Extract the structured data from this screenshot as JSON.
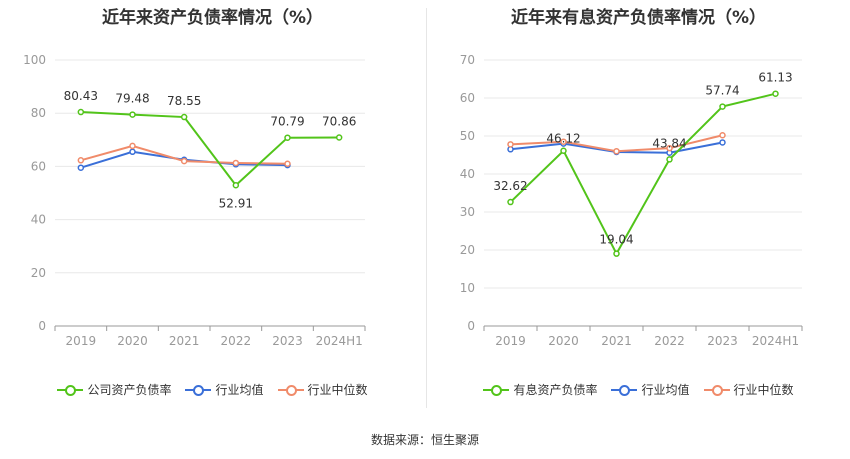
{
  "chart_data": [
    {
      "type": "line",
      "title": "近年来资产负债率情况（%）",
      "categories": [
        "2019",
        "2020",
        "2021",
        "2022",
        "2023",
        "2024H1"
      ],
      "ylim": [
        0,
        100
      ],
      "yticks": [
        "0",
        "20",
        "40",
        "60",
        "80",
        "100"
      ],
      "grid": true,
      "legend_position": "bottom",
      "series": [
        {
          "name": "公司资产负债率",
          "color": "#52c41a",
          "values": [
            80.43,
            79.48,
            78.55,
            52.91,
            70.79,
            70.86
          ],
          "labels": [
            "80.43",
            "79.48",
            "78.55",
            "52.91",
            "70.79",
            "70.86"
          ]
        },
        {
          "name": "行业均值",
          "color": "#3a6fd8",
          "values": [
            59.5,
            65.5,
            62.5,
            60.8,
            60.5,
            null
          ]
        },
        {
          "name": "行业中位数",
          "color": "#f08b6a",
          "values": [
            62.3,
            67.7,
            62.0,
            61.3,
            61.0,
            null
          ]
        }
      ]
    },
    {
      "type": "line",
      "title": "近年来有息资产负债率情况（%）",
      "categories": [
        "2019",
        "2020",
        "2021",
        "2022",
        "2023",
        "2024H1"
      ],
      "ylim": [
        0,
        70
      ],
      "yticks": [
        "0",
        "10",
        "20",
        "30",
        "40",
        "50",
        "60",
        "70"
      ],
      "grid": true,
      "legend_position": "bottom",
      "series": [
        {
          "name": "有息资产负债率",
          "color": "#52c41a",
          "values": [
            32.62,
            46.12,
            19.04,
            43.84,
            57.74,
            61.13
          ],
          "labels": [
            "32.62",
            "46.12",
            "19.04",
            "43.84",
            "57.74",
            "61.13"
          ]
        },
        {
          "name": "行业均值",
          "color": "#3a6fd8",
          "values": [
            46.5,
            48.0,
            45.8,
            45.6,
            48.3,
            null
          ]
        },
        {
          "name": "行业中位数",
          "color": "#f08b6a",
          "values": [
            47.8,
            48.5,
            46.0,
            46.8,
            50.2,
            null
          ]
        }
      ]
    }
  ],
  "source": "数据来源：恒生聚源"
}
